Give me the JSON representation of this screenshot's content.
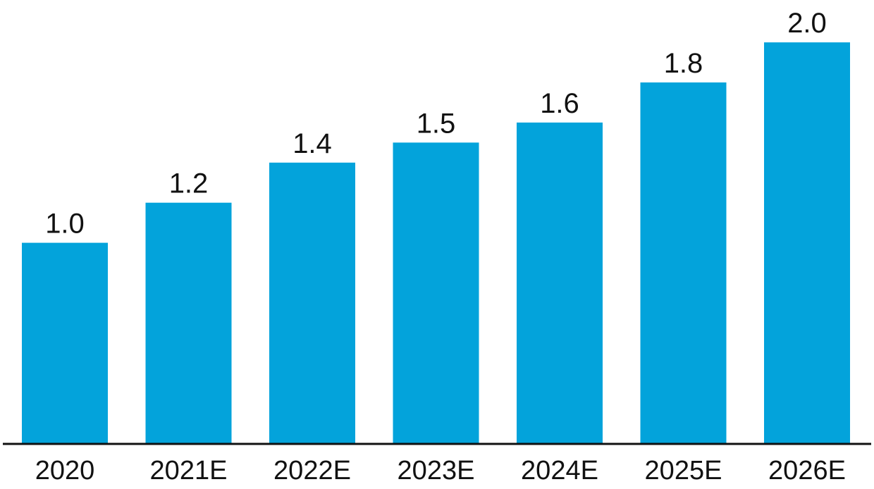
{
  "chart_data": {
    "type": "bar",
    "categories": [
      "2020",
      "2021E",
      "2022E",
      "2023E",
      "2024E",
      "2025E",
      "2026E"
    ],
    "values": [
      1.0,
      1.2,
      1.4,
      1.5,
      1.6,
      1.8,
      2.0
    ],
    "value_labels": [
      "1.0",
      "1.2",
      "1.4",
      "1.5",
      "1.6",
      "1.8",
      "2.0"
    ],
    "title": "",
    "xlabel": "",
    "ylabel": "",
    "ylim": [
      0,
      2.12
    ],
    "grid": false,
    "legend": "none",
    "bar_color": "#03A3DB",
    "axis_color": "#111111"
  }
}
